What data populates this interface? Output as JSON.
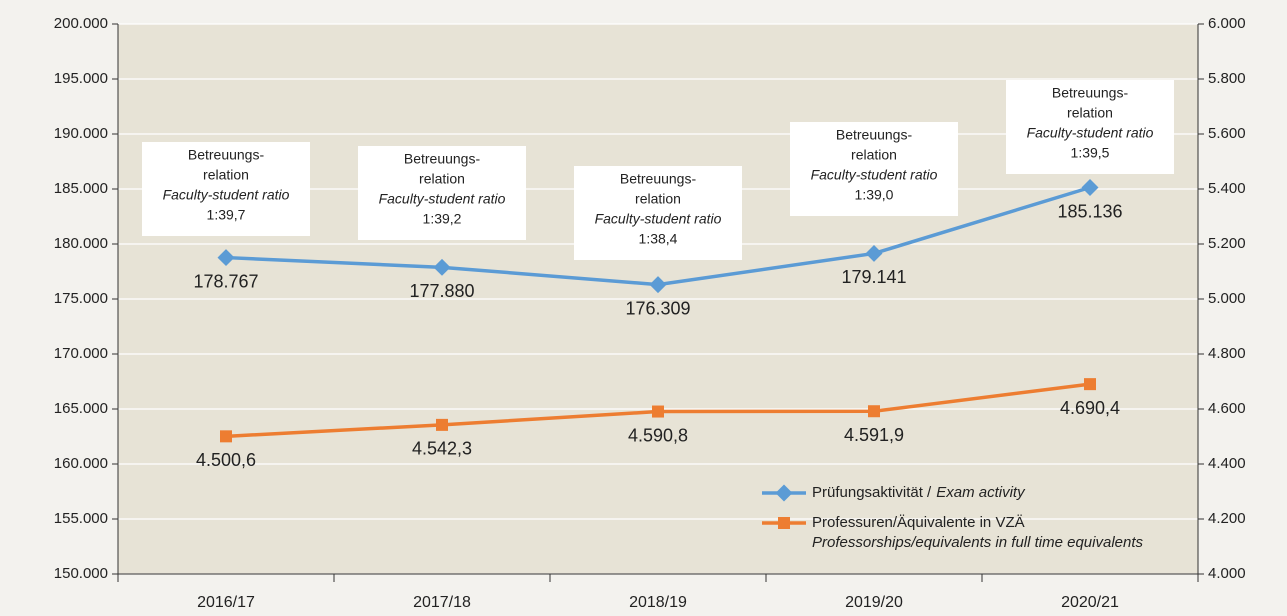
{
  "chart_data": {
    "type": "line",
    "categories": [
      "2016/17",
      "2017/18",
      "2018/19",
      "2019/20",
      "2020/21"
    ],
    "series": [
      {
        "name": "Prüfungsaktivität /",
        "name_en": "Exam activity",
        "color": "#5b9bd5",
        "axis": "y",
        "values": [
          178767,
          177880,
          176309,
          179141,
          185136
        ],
        "value_labels": [
          "178.767",
          "177.880",
          "176.309",
          "179.141",
          "185.136"
        ]
      },
      {
        "name": "Professuren/Äquivalente in VZÄ",
        "name_en": "Professorships/equivalents in full time equivalents",
        "color": "#ed7d31",
        "axis": "y2",
        "values": [
          4500.6,
          4542.3,
          4590.8,
          4591.9,
          4690.4
        ],
        "value_labels": [
          "4.500,6",
          "4.542,3",
          "4.590,8",
          "4.591,9",
          "4.690,4"
        ]
      }
    ],
    "ylim": [
      150000,
      200000
    ],
    "yticks": [
      {
        "value": 150000,
        "label": "150.000"
      },
      {
        "value": 155000,
        "label": "155.000"
      },
      {
        "value": 160000,
        "label": "160.000"
      },
      {
        "value": 165000,
        "label": "165.000"
      },
      {
        "value": 170000,
        "label": "170.000"
      },
      {
        "value": 175000,
        "label": "175.000"
      },
      {
        "value": 180000,
        "label": "180.000"
      },
      {
        "value": 185000,
        "label": "185.000"
      },
      {
        "value": 190000,
        "label": "190.000"
      },
      {
        "value": 195000,
        "label": "195.000"
      },
      {
        "value": 200000,
        "label": "200.000"
      }
    ],
    "y2lim": [
      4000,
      6000
    ],
    "y2ticks": [
      {
        "value": 4000,
        "label": "4.000"
      },
      {
        "value": 4200,
        "label": "4.200"
      },
      {
        "value": 4400,
        "label": "4.400"
      },
      {
        "value": 4600,
        "label": "4.600"
      },
      {
        "value": 4800,
        "label": "4.800"
      },
      {
        "value": 5000,
        "label": "5.000"
      },
      {
        "value": 5200,
        "label": "5.200"
      },
      {
        "value": 5400,
        "label": "5.400"
      },
      {
        "value": 5600,
        "label": "5.600"
      },
      {
        "value": 5800,
        "label": "5.800"
      },
      {
        "value": 6000,
        "label": "6.000"
      }
    ],
    "grid": true,
    "annotations": [
      {
        "line1": "Betreuungs-",
        "line2": "relation",
        "line3": "Faculty-student ratio",
        "ratio": "1:39,7"
      },
      {
        "line1": "Betreuungs-",
        "line2": "relation",
        "line3": "Faculty-student ratio",
        "ratio": "1:39,2"
      },
      {
        "line1": "Betreuungs-",
        "line2": "relation",
        "line3": "Faculty-student ratio",
        "ratio": "1:38,4"
      },
      {
        "line1": "Betreuungs-",
        "line2": "relation",
        "line3": "Faculty-student ratio",
        "ratio": "1:39,0"
      },
      {
        "line1": "Betreuungs-",
        "line2": "relation",
        "line3": "Faculty-student ratio",
        "ratio": "1:39,5"
      }
    ]
  }
}
